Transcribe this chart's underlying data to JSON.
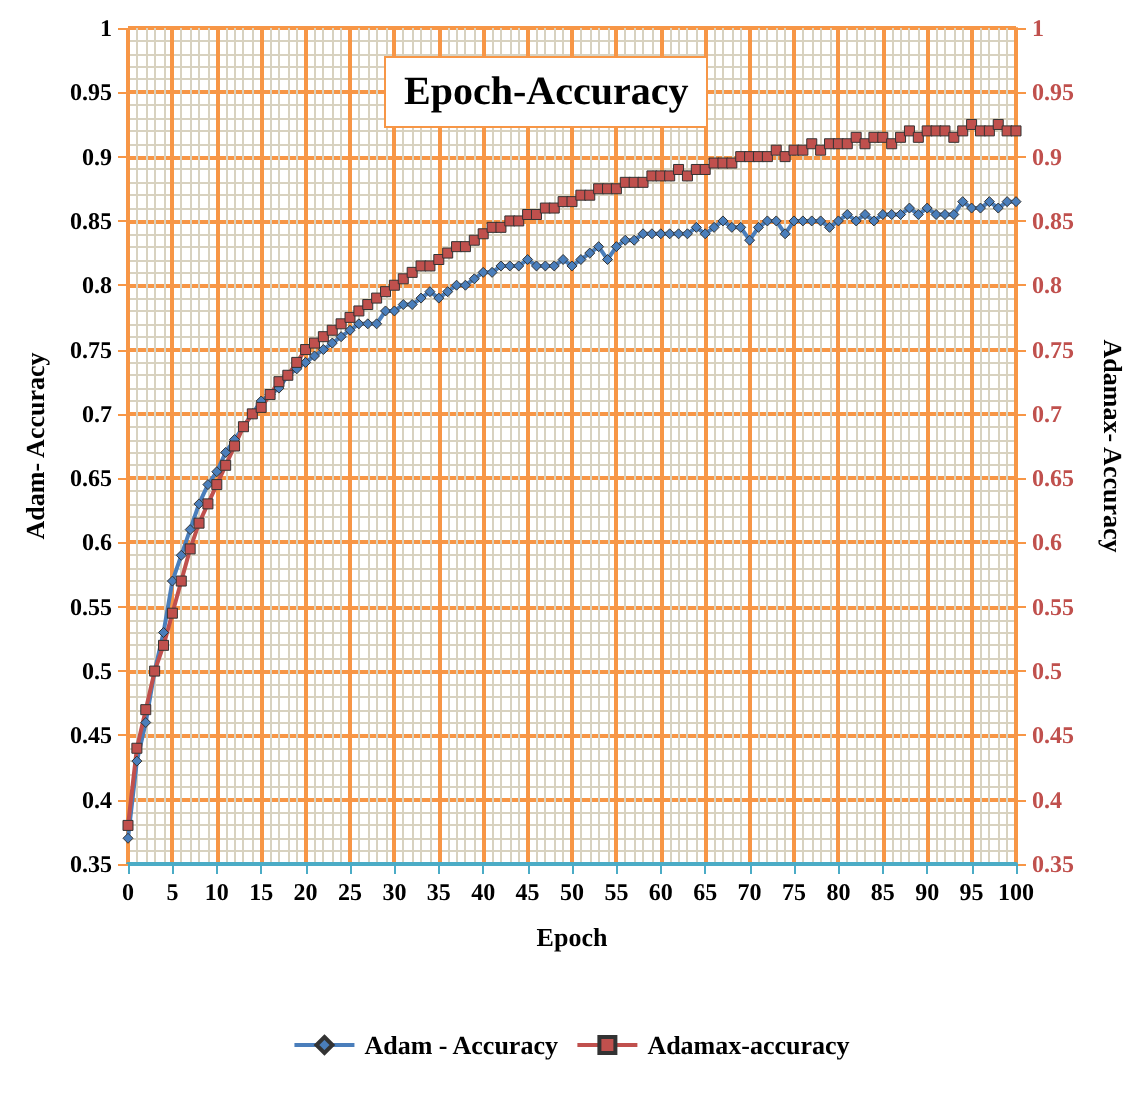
{
  "chart_data": {
    "type": "line",
    "title": "Epoch-Accuracy",
    "xlabel": "Epoch",
    "ylabel": "Adam- Accuracy",
    "y2label": "Adamax- Accuracy",
    "x": [
      0,
      1,
      2,
      3,
      4,
      5,
      6,
      7,
      8,
      9,
      10,
      11,
      12,
      13,
      14,
      15,
      16,
      17,
      18,
      19,
      20,
      21,
      22,
      23,
      24,
      25,
      26,
      27,
      28,
      29,
      30,
      31,
      32,
      33,
      34,
      35,
      36,
      37,
      38,
      39,
      40,
      41,
      42,
      43,
      44,
      45,
      46,
      47,
      48,
      49,
      50,
      51,
      52,
      53,
      54,
      55,
      56,
      57,
      58,
      59,
      60,
      61,
      62,
      63,
      64,
      65,
      66,
      67,
      68,
      69,
      70,
      71,
      72,
      73,
      74,
      75,
      76,
      77,
      78,
      79,
      80,
      81,
      82,
      83,
      84,
      85,
      86,
      87,
      88,
      89,
      90,
      91,
      92,
      93,
      94,
      95,
      96,
      97,
      98,
      99,
      100
    ],
    "series": [
      {
        "name": "Adam - Accuracy",
        "color": "#4a7ebb",
        "marker": "diamond",
        "values": [
          0.37,
          0.43,
          0.46,
          0.5,
          0.53,
          0.57,
          0.59,
          0.61,
          0.63,
          0.645,
          0.655,
          0.67,
          0.68,
          0.69,
          0.7,
          0.71,
          0.715,
          0.72,
          0.73,
          0.735,
          0.74,
          0.745,
          0.75,
          0.755,
          0.76,
          0.765,
          0.77,
          0.77,
          0.77,
          0.78,
          0.78,
          0.785,
          0.785,
          0.79,
          0.795,
          0.79,
          0.795,
          0.8,
          0.8,
          0.805,
          0.81,
          0.81,
          0.815,
          0.815,
          0.815,
          0.82,
          0.815,
          0.815,
          0.815,
          0.82,
          0.815,
          0.82,
          0.825,
          0.83,
          0.82,
          0.83,
          0.835,
          0.835,
          0.84,
          0.84,
          0.84,
          0.84,
          0.84,
          0.84,
          0.845,
          0.84,
          0.845,
          0.85,
          0.845,
          0.845,
          0.835,
          0.845,
          0.85,
          0.85,
          0.84,
          0.85,
          0.85,
          0.85,
          0.85,
          0.845,
          0.85,
          0.855,
          0.85,
          0.855,
          0.85,
          0.855,
          0.855,
          0.855,
          0.86,
          0.855,
          0.86,
          0.855,
          0.855,
          0.855,
          0.865,
          0.86,
          0.86,
          0.865,
          0.86,
          0.865,
          0.865
        ]
      },
      {
        "name": "Adamax-accuracy",
        "color": "#c0504d",
        "marker": "square",
        "axis": "y2",
        "values": [
          0.38,
          0.44,
          0.47,
          0.5,
          0.52,
          0.545,
          0.57,
          0.595,
          0.615,
          0.63,
          0.645,
          0.66,
          0.675,
          0.69,
          0.7,
          0.705,
          0.715,
          0.725,
          0.73,
          0.74,
          0.75,
          0.755,
          0.76,
          0.765,
          0.77,
          0.775,
          0.78,
          0.785,
          0.79,
          0.795,
          0.8,
          0.805,
          0.81,
          0.815,
          0.815,
          0.82,
          0.825,
          0.83,
          0.83,
          0.835,
          0.84,
          0.845,
          0.845,
          0.85,
          0.85,
          0.855,
          0.855,
          0.86,
          0.86,
          0.865,
          0.865,
          0.87,
          0.87,
          0.875,
          0.875,
          0.875,
          0.88,
          0.88,
          0.88,
          0.885,
          0.885,
          0.885,
          0.89,
          0.885,
          0.89,
          0.89,
          0.895,
          0.895,
          0.895,
          0.9,
          0.9,
          0.9,
          0.9,
          0.905,
          0.9,
          0.905,
          0.905,
          0.91,
          0.905,
          0.91,
          0.91,
          0.91,
          0.915,
          0.91,
          0.915,
          0.915,
          0.91,
          0.915,
          0.92,
          0.915,
          0.92,
          0.92,
          0.92,
          0.915,
          0.92,
          0.925,
          0.92,
          0.92,
          0.925,
          0.92,
          0.92
        ]
      }
    ],
    "xlim": [
      0,
      100
    ],
    "xticks": [
      0,
      5,
      10,
      15,
      20,
      25,
      30,
      35,
      40,
      45,
      50,
      55,
      60,
      65,
      70,
      75,
      80,
      85,
      90,
      95,
      100
    ],
    "ylim": [
      0.35,
      1
    ],
    "yticks": [
      0.35,
      0.4,
      0.45,
      0.5,
      0.55,
      0.6,
      0.65,
      0.7,
      0.75,
      0.8,
      0.85,
      0.9,
      0.95,
      1
    ],
    "y2lim": [
      0.35,
      1
    ],
    "y2ticks": [
      0.35,
      0.4,
      0.45,
      0.5,
      0.55,
      0.6,
      0.65,
      0.7,
      0.75,
      0.8,
      0.85,
      0.9,
      0.95,
      1
    ],
    "grid": true,
    "legend": "bottom",
    "line_style": "solid"
  }
}
